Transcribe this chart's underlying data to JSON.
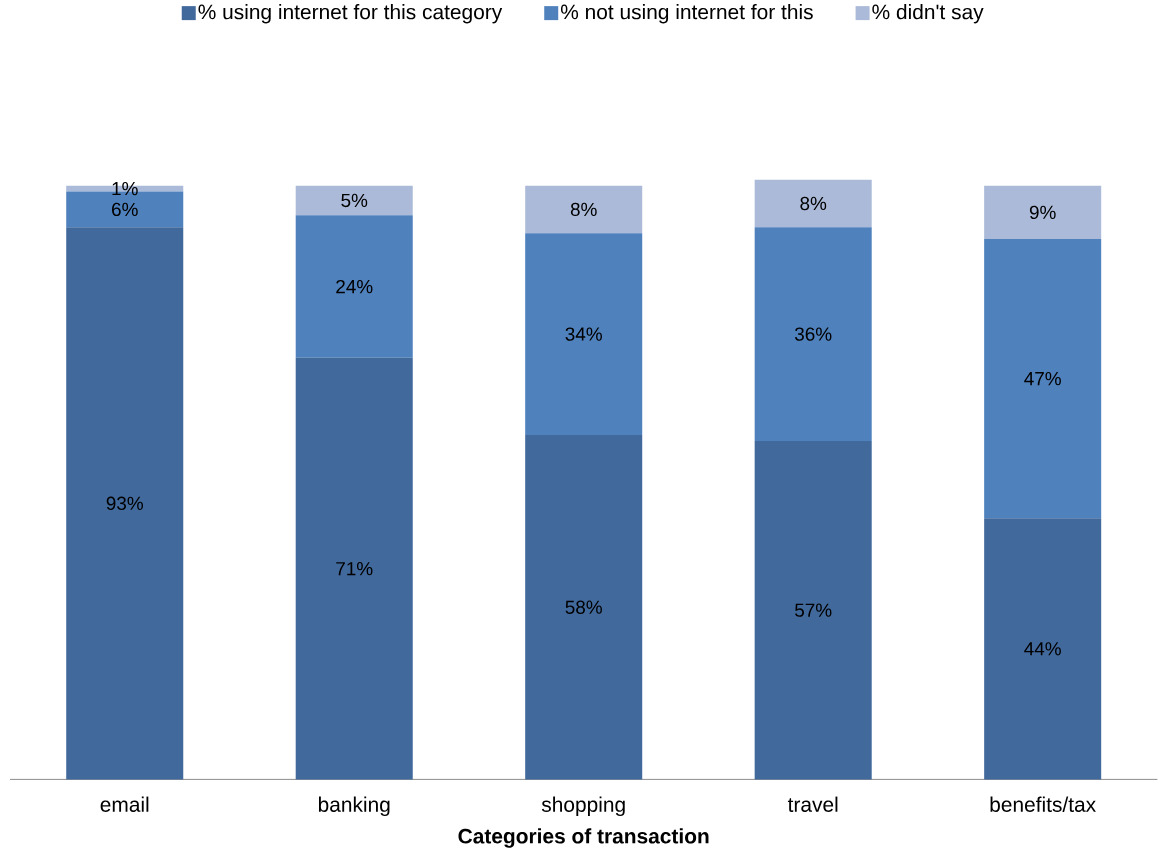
{
  "chart_data": {
    "type": "bar",
    "stacked": true,
    "xlabel": "Categories of transaction",
    "legend": "top",
    "categories": [
      "email",
      "banking",
      "shopping",
      "travel",
      "benefits/tax"
    ],
    "series": [
      {
        "name": "%  using internet for this category",
        "color": "#41699c",
        "values": [
          93,
          71,
          58,
          57,
          44
        ],
        "value_labels": [
          "93%",
          "71%",
          "58%",
          "57%",
          "44%"
        ]
      },
      {
        "name": "% not using internet for this",
        "color": "#4f81bd",
        "values": [
          6,
          24,
          34,
          36,
          47
        ],
        "value_labels": [
          "6%",
          "24%",
          "34%",
          "36%",
          "47%"
        ]
      },
      {
        "name": "% didn't say",
        "color": "#aabad8",
        "values": [
          1,
          5,
          8,
          8,
          9
        ],
        "value_labels": [
          "1%",
          "5%",
          "8%",
          "8%",
          "9%"
        ]
      }
    ]
  }
}
